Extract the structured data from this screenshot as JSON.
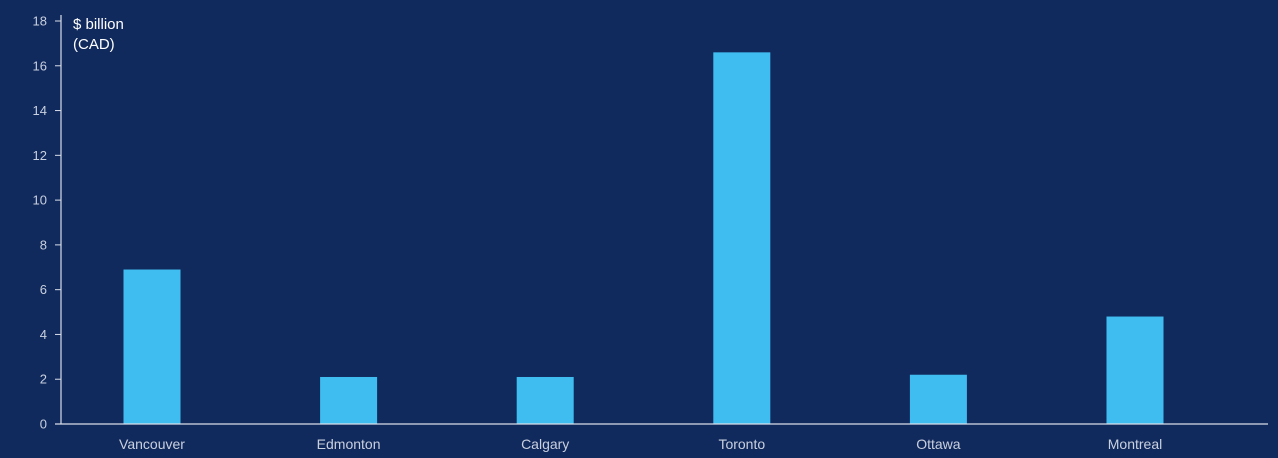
{
  "colors": {
    "background": "#112a5e",
    "bar": "#40bdf0",
    "axis": "#d9dee8",
    "text": "#c9d0de",
    "unit_text": "#ffffff"
  },
  "chart_data": {
    "type": "bar",
    "categories": [
      "Vancouver",
      "Edmonton",
      "Calgary",
      "Toronto",
      "Ottawa",
      "Montreal"
    ],
    "values": [
      6.9,
      2.1,
      2.1,
      16.6,
      2.2,
      4.8
    ],
    "ylabel_lines": [
      "$ billion",
      "(CAD)"
    ],
    "ylim": [
      0,
      18
    ],
    "yticks": [
      0,
      2,
      4,
      6,
      8,
      10,
      12,
      14,
      16,
      18
    ],
    "grid": false,
    "legend": "none"
  }
}
